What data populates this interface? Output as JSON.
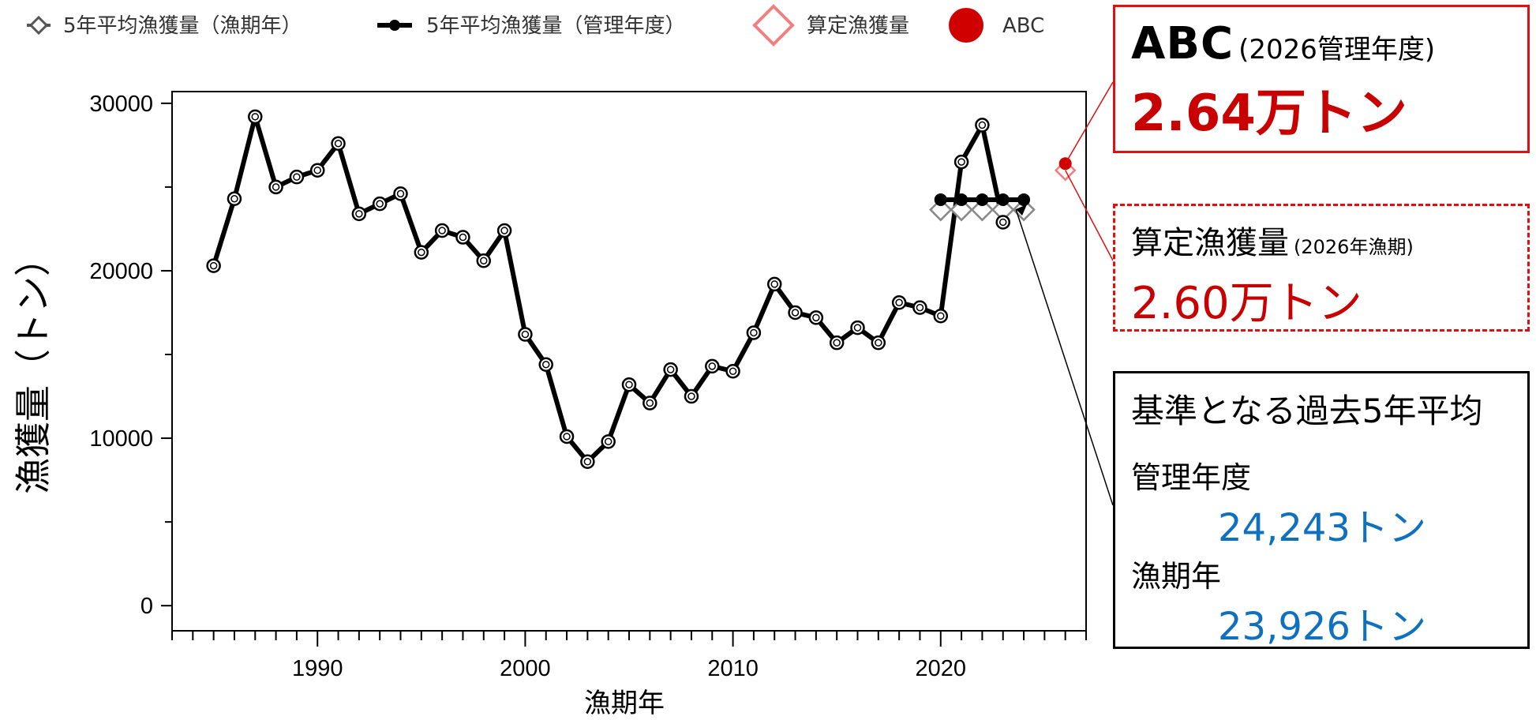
{
  "legend": {
    "items": [
      {
        "label": "5年平均漁獲量（漁期年）",
        "icon": "hollow-diamond-line"
      },
      {
        "label": "5年平均漁獲量（管理年度）",
        "icon": "filled-circle-line"
      },
      {
        "label": "算定漁獲量",
        "icon": "red-hollow-diamond"
      },
      {
        "label": "ABC",
        "icon": "red-filled-circle"
      }
    ]
  },
  "abc_box": {
    "title": "ABC",
    "subtitle": "(2026管理年度)",
    "value": "2.64万トン"
  },
  "calc_box": {
    "title": "算定漁獲量",
    "subtitle": "(2026年漁期)",
    "value": "2.60万トン"
  },
  "base_box": {
    "title": "基準となる過去5年平均",
    "management_label": "管理年度",
    "management_value": "24,243トン",
    "season_label": "漁期年",
    "season_value": "23,926トン"
  },
  "colors": {
    "line": "#000000",
    "accent": "#d00000",
    "diamond_red": "#f08080",
    "value_blue": "#1070c0"
  },
  "chart_data": {
    "type": "line",
    "xlabel": "漁期年",
    "ylabel": "漁獲量（トン）",
    "xlim": [
      1983,
      2027
    ],
    "ylim": [
      -1500,
      30700
    ],
    "x_ticks": [
      1990,
      2000,
      2010,
      2020
    ],
    "y_ticks": [
      0,
      10000,
      20000,
      30000
    ],
    "series": [
      {
        "name": "漁獲量",
        "x": [
          1985,
          1986,
          1987,
          1988,
          1989,
          1990,
          1991,
          1992,
          1993,
          1994,
          1995,
          1996,
          1997,
          1998,
          1999,
          2000,
          2001,
          2002,
          2003,
          2004,
          2005,
          2006,
          2007,
          2008,
          2009,
          2010,
          2011,
          2012,
          2013,
          2014,
          2015,
          2016,
          2017,
          2018,
          2019,
          2020,
          2021,
          2022,
          2023
        ],
        "y": [
          20300,
          24300,
          29200,
          25000,
          25600,
          26000,
          27600,
          23400,
          24000,
          24600,
          21100,
          22400,
          22000,
          20600,
          22400,
          16200,
          14400,
          10100,
          8600,
          9800,
          13200,
          12100,
          14100,
          12500,
          14300,
          14000,
          16300,
          19200,
          17500,
          17200,
          15700,
          16600,
          15700,
          18100,
          17800,
          17300,
          26500,
          28700,
          22900
        ]
      },
      {
        "name": "5年平均漁獲量（漁期年）",
        "x": [
          2020,
          2021,
          2022,
          2023,
          2024
        ],
        "y": [
          23926,
          23926,
          23926,
          23926,
          23926
        ]
      },
      {
        "name": "5年平均漁獲量（管理年度）",
        "x": [
          2020,
          2021,
          2022,
          2023,
          2024
        ],
        "y": [
          24243,
          24243,
          24243,
          24243,
          24243
        ]
      },
      {
        "name": "算定漁獲量",
        "x": [
          2026
        ],
        "y": [
          26000
        ]
      },
      {
        "name": "ABC",
        "x": [
          2026
        ],
        "y": [
          26400
        ]
      }
    ]
  }
}
